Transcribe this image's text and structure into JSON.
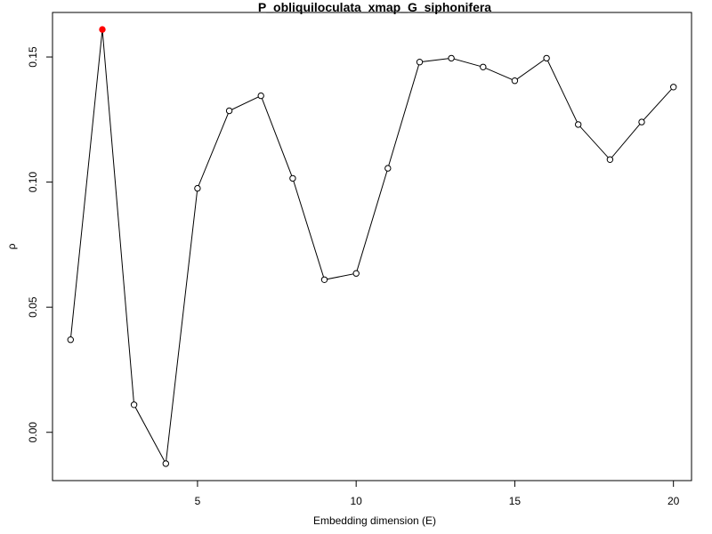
{
  "chart_data": {
    "type": "line",
    "title": "P_obliquiloculata_xmap_G_siphonifera",
    "xlabel": "Embedding dimension (E)",
    "ylabel": "ρ",
    "x": [
      1,
      2,
      3,
      4,
      5,
      6,
      7,
      8,
      9,
      10,
      11,
      12,
      13,
      14,
      15,
      16,
      17,
      18,
      19,
      20
    ],
    "series": [
      {
        "values": [
          0.037,
          0.161,
          0.011,
          -0.0125,
          0.0975,
          0.1285,
          0.1345,
          0.1015,
          0.061,
          0.0635,
          0.1055,
          0.148,
          0.1495,
          0.146,
          0.1405,
          0.1495,
          0.123,
          0.109,
          0.124,
          0.138
        ]
      }
    ],
    "highlight": {
      "x": 2,
      "y": 0.161,
      "color": "#ff0000"
    },
    "xlim": [
      0.43,
      20.57
    ],
    "ylim": [
      -0.0193,
      0.1678
    ],
    "xticks": [
      5,
      10,
      15,
      20
    ],
    "xtick_labels": [
      "5",
      "10",
      "15",
      "20"
    ],
    "yticks": [
      0.0,
      0.05,
      0.1,
      0.15
    ],
    "ytick_labels": [
      "0.00",
      "0.05",
      "0.10",
      "0.15"
    ],
    "grid": false,
    "line_color": "#000000",
    "marker": "open-circle"
  }
}
